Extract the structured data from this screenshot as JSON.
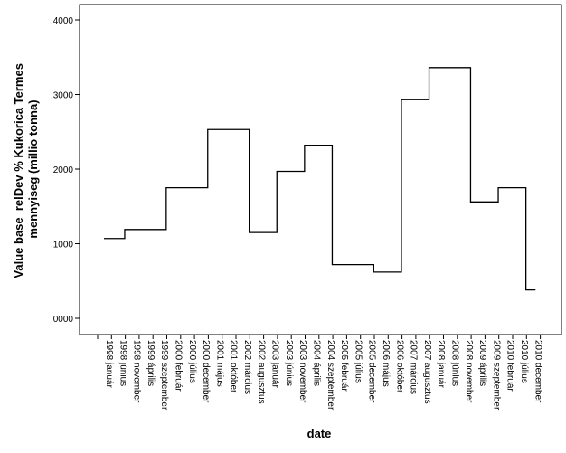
{
  "chart_data": {
    "type": "line",
    "line_shape": "step",
    "xlabel": "date",
    "ylabel_lines": [
      "Value base_relDev % Kukorica Termes",
      "mennyiseg (millio tonna)"
    ],
    "ylim": [
      0,
      0.4
    ],
    "yticks": [
      ",0000",
      ",1000",
      ",2000",
      ",3000",
      ",4000"
    ],
    "x_labels": [
      "1998 január",
      "1998 június",
      "1998 november",
      "1999 április",
      "1999 szeptember",
      "2000 február",
      "2000 július",
      "2000 december",
      "2001 május",
      "2001 október",
      "2002 március",
      "2002 augusztus",
      "2003 január",
      "2003 június",
      "2003 november",
      "2004 április",
      "2004 szeptember",
      "2005 február",
      "2005 július",
      "2005 december",
      "2006 május",
      "2006 október",
      "2007 március",
      "2007 augusztus",
      "2008 január",
      "2008 június",
      "2008 november",
      "2009 április",
      "2009 szeptember",
      "2010 február",
      "2010 július",
      "2010 december"
    ],
    "series": [
      {
        "values": [
          0.107,
          0.107,
          0.119,
          0.119,
          0.119,
          0.175,
          0.175,
          0.175,
          0.253,
          0.253,
          0.253,
          0.115,
          0.115,
          0.197,
          0.197,
          0.232,
          0.232,
          0.072,
          0.072,
          0.072,
          0.062,
          0.062,
          0.293,
          0.293,
          0.336,
          0.336,
          0.336,
          0.156,
          0.156,
          0.175,
          0.175,
          0.038
        ],
        "color": "#000000"
      }
    ],
    "grid": false,
    "legend": "none"
  }
}
